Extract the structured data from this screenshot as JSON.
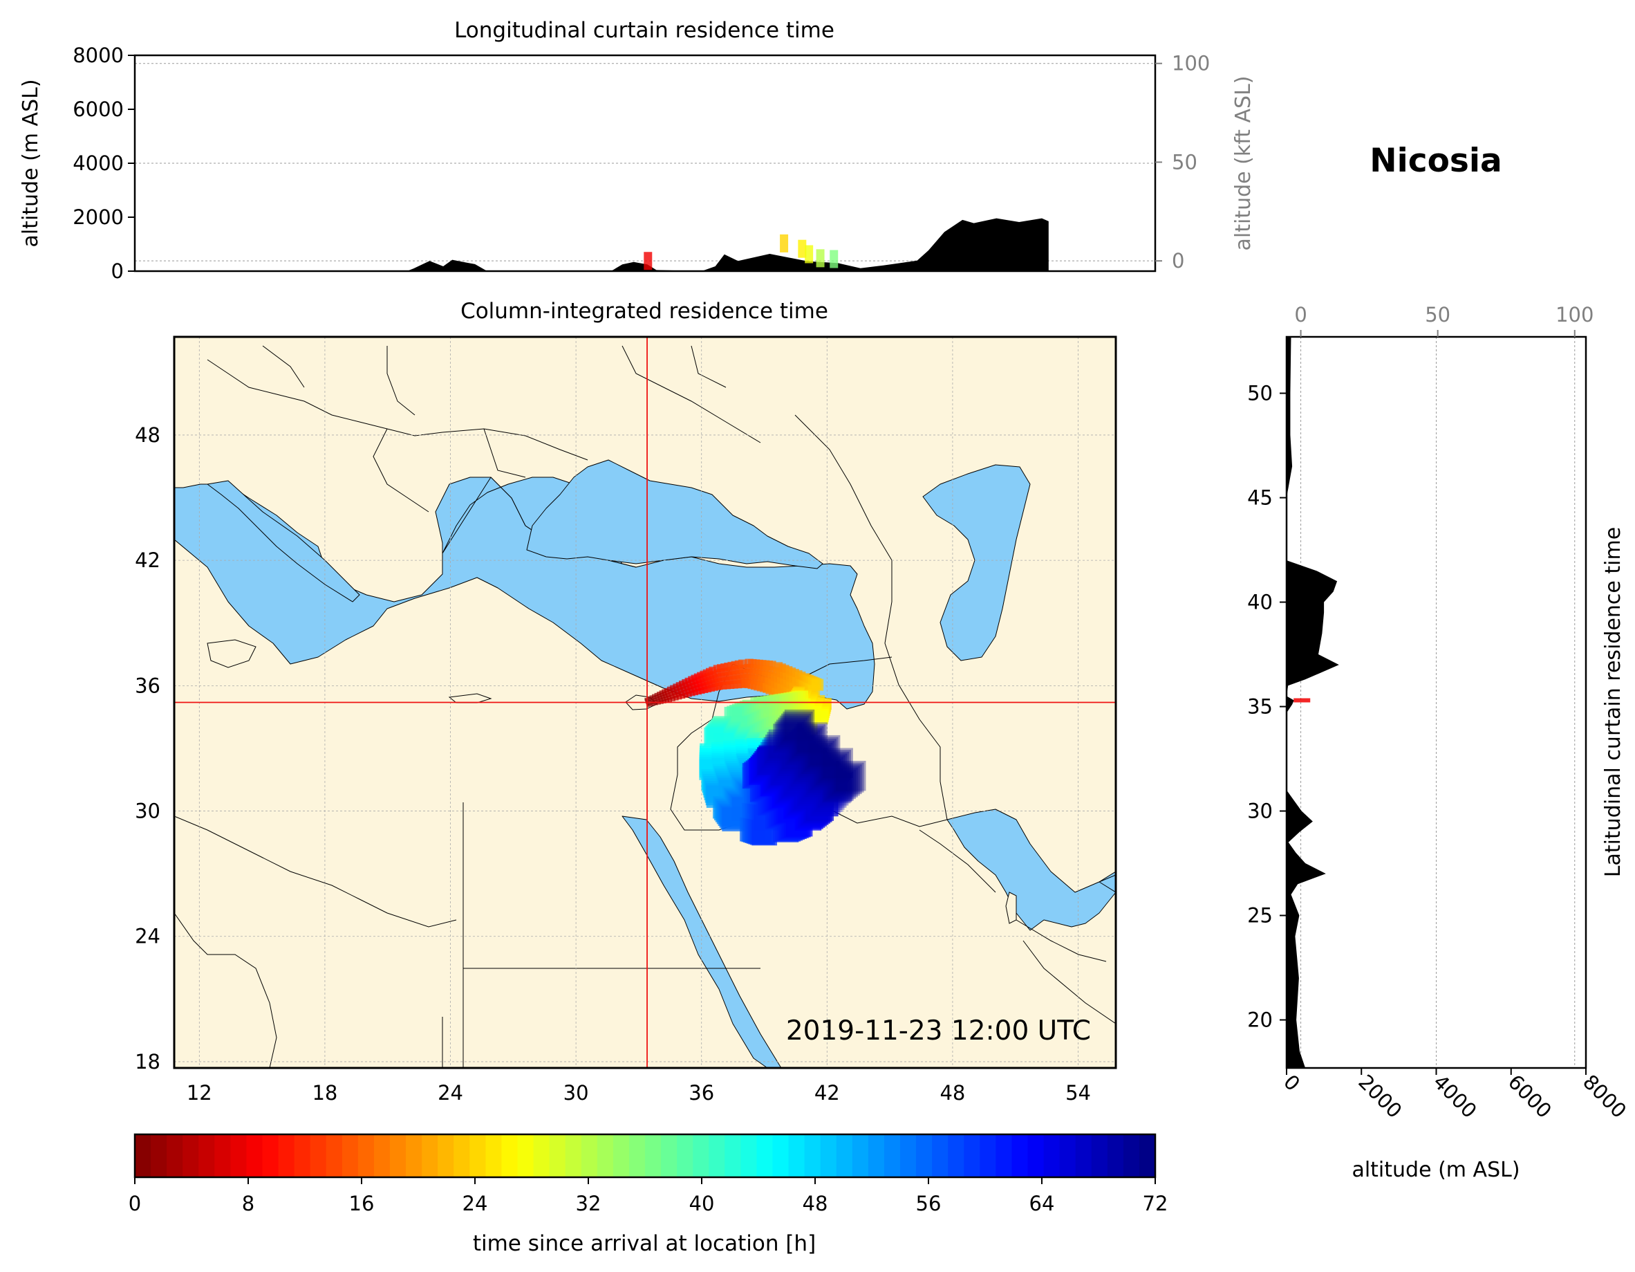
{
  "location_name": "Nicosia",
  "timestamp": "2019-11-23 12:00 UTC",
  "chart_data": [
    {
      "type": "area",
      "title": "Longitudinal curtain residence time",
      "ylabel": "altitude (m ASL)",
      "ylabel_right": "altitude (kft ASL)",
      "ylim": [
        0,
        8000
      ],
      "yticks": [
        "0",
        "2000",
        "4000",
        "6000",
        "8000"
      ],
      "yticks_right": [
        "0",
        "50",
        "100"
      ],
      "xlim": [
        11,
        56
      ],
      "terrain_profile_m": [
        [
          11,
          0
        ],
        [
          23,
          0
        ],
        [
          23.3,
          100
        ],
        [
          24,
          380
        ],
        [
          24.6,
          180
        ],
        [
          25,
          420
        ],
        [
          25.6,
          320
        ],
        [
          26,
          260
        ],
        [
          26.5,
          20
        ],
        [
          32,
          0
        ],
        [
          32.5,
          250
        ],
        [
          33,
          340
        ],
        [
          33.6,
          250
        ],
        [
          34,
          40
        ],
        [
          36,
          0
        ],
        [
          36.6,
          180
        ],
        [
          37,
          620
        ],
        [
          37.6,
          380
        ],
        [
          39,
          640
        ],
        [
          40.6,
          380
        ],
        [
          41,
          350
        ],
        [
          42,
          300
        ],
        [
          43,
          110
        ],
        [
          44,
          210
        ],
        [
          45.5,
          390
        ],
        [
          46,
          770
        ],
        [
          46.7,
          1450
        ],
        [
          47.5,
          1900
        ],
        [
          48,
          1780
        ],
        [
          49,
          1960
        ],
        [
          50,
          1820
        ],
        [
          51,
          1960
        ],
        [
          51.3,
          1850
        ],
        [
          51.3,
          0
        ]
      ],
      "plume_cells": [
        [
          33.6,
          250,
          8
        ],
        [
          39.6,
          900,
          24
        ],
        [
          40.4,
          700,
          26
        ],
        [
          40.7,
          500,
          28
        ],
        [
          41.2,
          350,
          32
        ],
        [
          41.8,
          320,
          36
        ]
      ]
    },
    {
      "type": "scatter",
      "title": "Column-integrated residence time",
      "xlim": [
        10.8,
        55.8
      ],
      "ylim": [
        17.7,
        52.7
      ],
      "xticks": [
        "12",
        "18",
        "24",
        "30",
        "36",
        "42",
        "48",
        "54"
      ],
      "yticks": [
        "18",
        "24",
        "30",
        "36",
        "42",
        "48"
      ],
      "receptor": {
        "lon": 33.4,
        "lat": 35.2
      },
      "trajectory": [
        [
          33.4,
          35.2,
          0
        ],
        [
          34.4,
          35.55,
          4
        ],
        [
          35.6,
          36.0,
          8
        ],
        [
          36.8,
          36.4,
          12
        ],
        [
          38.2,
          36.6,
          15
        ],
        [
          39.4,
          36.4,
          18
        ],
        [
          40.6,
          35.8,
          21
        ],
        [
          41.3,
          35.4,
          24
        ],
        [
          41.0,
          34.7,
          28
        ],
        [
          40.0,
          34.4,
          32
        ],
        [
          38.8,
          34.1,
          36
        ],
        [
          37.9,
          33.6,
          40
        ],
        [
          37.5,
          32.9,
          44
        ],
        [
          37.6,
          32.0,
          48
        ],
        [
          38.0,
          31.1,
          52
        ],
        [
          38.6,
          30.5,
          56
        ],
        [
          39.3,
          30.4,
          60
        ],
        [
          40.0,
          30.8,
          63
        ],
        [
          40.6,
          31.4,
          66
        ],
        [
          41.3,
          32.3,
          69
        ],
        [
          42.0,
          33.0,
          72
        ]
      ]
    },
    {
      "type": "area",
      "title": "Latitudinal curtain residence time",
      "xlabel": "altitude (m ASL)",
      "xticks": [
        "0",
        "2000",
        "4000",
        "6000",
        "8000"
      ],
      "xticks_top": [
        "0",
        "50",
        "100"
      ],
      "xlim": [
        0,
        8000
      ],
      "ylim": [
        17.7,
        52.7
      ],
      "yticks": [
        "20",
        "25",
        "30",
        "35",
        "40",
        "45",
        "50"
      ],
      "terrain_profile_m": [
        [
          17.7,
          500
        ],
        [
          18.5,
          350
        ],
        [
          20,
          260
        ],
        [
          22,
          330
        ],
        [
          24,
          230
        ],
        [
          25,
          340
        ],
        [
          26,
          120
        ],
        [
          26.5,
          300
        ],
        [
          27,
          1050
        ],
        [
          27.5,
          500
        ],
        [
          28,
          250
        ],
        [
          28.5,
          50
        ],
        [
          29,
          350
        ],
        [
          29.5,
          700
        ],
        [
          30,
          400
        ],
        [
          30.5,
          200
        ],
        [
          31,
          0
        ],
        [
          34.7,
          0
        ],
        [
          35.1,
          150
        ],
        [
          35.3,
          200
        ],
        [
          35.5,
          0
        ],
        [
          36,
          40
        ],
        [
          36.3,
          500
        ],
        [
          37,
          1400
        ],
        [
          37.5,
          850
        ],
        [
          38.5,
          950
        ],
        [
          39.5,
          1000
        ],
        [
          40,
          1000
        ],
        [
          40.5,
          1250
        ],
        [
          41,
          1350
        ],
        [
          41.5,
          800
        ],
        [
          42,
          0
        ],
        [
          45,
          0
        ],
        [
          46.5,
          150
        ],
        [
          48,
          100
        ],
        [
          50,
          100
        ],
        [
          52.7,
          120
        ]
      ],
      "plume_cells": [
        [
          35.3,
          300,
          8
        ]
      ]
    },
    {
      "type": "heatmap",
      "title": "",
      "xlabel": "time since arrival at location [h]",
      "range": [
        0,
        72
      ],
      "ticks": [
        "0",
        "8",
        "16",
        "24",
        "32",
        "40",
        "48",
        "56",
        "64",
        "72"
      ],
      "colormap": "jet"
    }
  ],
  "colors": {
    "land": "#fdf5dc",
    "water": "#87cdf8",
    "border": "#000000",
    "crosshair": "#ee1111",
    "terrain": "#000000"
  }
}
